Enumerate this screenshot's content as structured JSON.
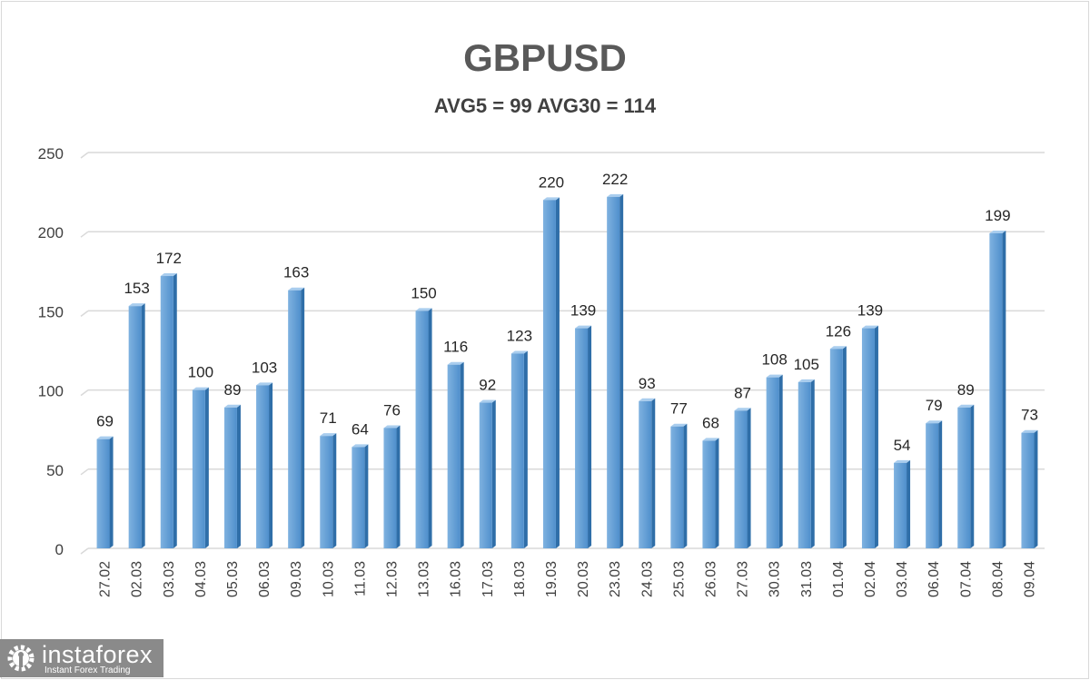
{
  "chart_data": {
    "type": "bar",
    "title": "GBPUSD",
    "subtitle": "AVG5 = 99 AVG30 = 114",
    "xlabel": "",
    "ylabel": "",
    "ylim": [
      0,
      250
    ],
    "yticks": [
      0,
      50,
      100,
      150,
      200,
      250
    ],
    "grid": true,
    "bar_color": "#5b9bd5",
    "categories": [
      "27.02",
      "02.03",
      "03.03",
      "04.03",
      "05.03",
      "06.03",
      "09.03",
      "10.03",
      "11.03",
      "12.03",
      "13.03",
      "16.03",
      "17.03",
      "18.03",
      "19.03",
      "20.03",
      "23.03",
      "24.03",
      "25.03",
      "26.03",
      "27.03",
      "30.03",
      "31.03",
      "01.04",
      "02.04",
      "03.04",
      "06.04",
      "07.04",
      "08.04",
      "09.04"
    ],
    "values": [
      69,
      153,
      172,
      100,
      89,
      103,
      163,
      71,
      64,
      76,
      150,
      116,
      92,
      123,
      220,
      139,
      222,
      93,
      77,
      68,
      87,
      108,
      105,
      126,
      139,
      54,
      79,
      89,
      199,
      73
    ]
  },
  "logo": {
    "name": "instaforex",
    "tagline": "Instant Forex Trading"
  }
}
